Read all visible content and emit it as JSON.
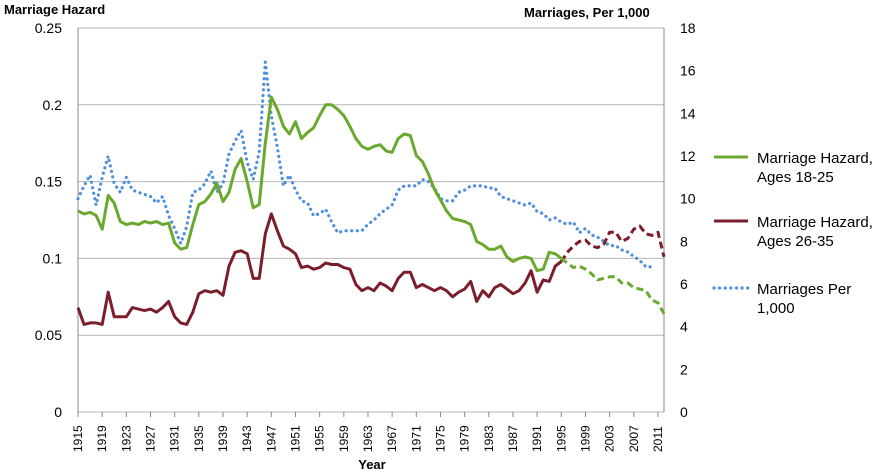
{
  "chart_data": {
    "type": "line",
    "left_axis_title": "Marriage Hazard",
    "right_axis_title": "Marriages, Per 1,000",
    "xlabel": "Year",
    "left_ylim": [
      0,
      0.25
    ],
    "right_ylim": [
      0,
      18
    ],
    "left_ticks": [
      "0",
      "0.05",
      "0.1",
      "0.15",
      "0.2",
      "0.25"
    ],
    "right_ticks": [
      "0",
      "2",
      "4",
      "6",
      "8",
      "10",
      "12",
      "14",
      "16",
      "18"
    ],
    "x_range": [
      1915,
      2012
    ],
    "x_ticks": [
      "1915",
      "1919",
      "1923",
      "1927",
      "1931",
      "1935",
      "1939",
      "1943",
      "1947",
      "1951",
      "1955",
      "1959",
      "1963",
      "1967",
      "1971",
      "1975",
      "1979",
      "1983",
      "1987",
      "1991",
      "1995",
      "1999",
      "2003",
      "2007",
      "2011"
    ],
    "grid": true,
    "legend_position": "right",
    "colors": {
      "green": "#6aa92e",
      "maroon": "#7b1e2c",
      "blue": "#4f8fdb",
      "grid": "#b5b5b5"
    },
    "series": [
      {
        "name": "Marriage Hazard, Ages 18-25",
        "axis": "left",
        "color": "#6aa92e",
        "style": "solid",
        "dashed_from": 1995,
        "x": [
          1915,
          1916,
          1917,
          1918,
          1919,
          1920,
          1921,
          1922,
          1923,
          1924,
          1925,
          1926,
          1927,
          1928,
          1929,
          1930,
          1931,
          1932,
          1933,
          1934,
          1935,
          1936,
          1937,
          1938,
          1939,
          1940,
          1941,
          1942,
          1943,
          1944,
          1945,
          1946,
          1947,
          1948,
          1949,
          1950,
          1951,
          1952,
          1953,
          1954,
          1955,
          1956,
          1957,
          1958,
          1959,
          1960,
          1961,
          1962,
          1963,
          1964,
          1965,
          1966,
          1967,
          1968,
          1969,
          1970,
          1971,
          1972,
          1973,
          1974,
          1975,
          1976,
          1977,
          1978,
          1979,
          1980,
          1981,
          1982,
          1983,
          1984,
          1985,
          1986,
          1987,
          1988,
          1989,
          1990,
          1991,
          1992,
          1993,
          1994,
          1995,
          1996,
          1997,
          1998,
          1999,
          2000,
          2001,
          2002,
          2003,
          2004,
          2005,
          2006,
          2007,
          2008,
          2009,
          2010,
          2011,
          2012
        ],
        "values": [
          0.131,
          0.129,
          0.13,
          0.128,
          0.119,
          0.141,
          0.136,
          0.124,
          0.122,
          0.123,
          0.122,
          0.124,
          0.123,
          0.124,
          0.122,
          0.123,
          0.11,
          0.106,
          0.107,
          0.122,
          0.135,
          0.137,
          0.142,
          0.149,
          0.137,
          0.143,
          0.158,
          0.165,
          0.15,
          0.133,
          0.135,
          0.175,
          0.205,
          0.197,
          0.186,
          0.181,
          0.189,
          0.178,
          0.182,
          0.185,
          0.193,
          0.2,
          0.2,
          0.197,
          0.193,
          0.186,
          0.178,
          0.173,
          0.171,
          0.173,
          0.174,
          0.17,
          0.169,
          0.178,
          0.181,
          0.18,
          0.167,
          0.163,
          0.155,
          0.145,
          0.138,
          0.131,
          0.126,
          0.125,
          0.124,
          0.122,
          0.111,
          0.109,
          0.106,
          0.106,
          0.108,
          0.101,
          0.098,
          0.1,
          0.101,
          0.1,
          0.092,
          0.093,
          0.104,
          0.103,
          0.1,
          0.097,
          0.094,
          0.095,
          0.093,
          0.09,
          0.086,
          0.087,
          0.088,
          0.088,
          0.084,
          0.084,
          0.081,
          0.08,
          0.079,
          0.073,
          0.071,
          0.064
        ]
      },
      {
        "name": "Marriage Hazard, Ages 26-35",
        "axis": "left",
        "color": "#7b1e2c",
        "style": "solid",
        "dashed_from": 1995,
        "x": [
          1915,
          1916,
          1917,
          1918,
          1919,
          1920,
          1921,
          1922,
          1923,
          1924,
          1925,
          1926,
          1927,
          1928,
          1929,
          1930,
          1931,
          1932,
          1933,
          1934,
          1935,
          1936,
          1937,
          1938,
          1939,
          1940,
          1941,
          1942,
          1943,
          1944,
          1945,
          1946,
          1947,
          1948,
          1949,
          1950,
          1951,
          1952,
          1953,
          1954,
          1955,
          1956,
          1957,
          1958,
          1959,
          1960,
          1961,
          1962,
          1963,
          1964,
          1965,
          1966,
          1967,
          1968,
          1969,
          1970,
          1971,
          1972,
          1973,
          1974,
          1975,
          1976,
          1977,
          1978,
          1979,
          1980,
          1981,
          1982,
          1983,
          1984,
          1985,
          1986,
          1987,
          1988,
          1989,
          1990,
          1991,
          1992,
          1993,
          1994,
          1995,
          1996,
          1997,
          1998,
          1999,
          2000,
          2001,
          2002,
          2003,
          2004,
          2005,
          2006,
          2007,
          2008,
          2009,
          2010,
          2011,
          2012
        ],
        "values": [
          0.068,
          0.057,
          0.058,
          0.058,
          0.057,
          0.078,
          0.062,
          0.062,
          0.062,
          0.068,
          0.067,
          0.066,
          0.067,
          0.065,
          0.068,
          0.072,
          0.062,
          0.058,
          0.057,
          0.065,
          0.077,
          0.079,
          0.078,
          0.079,
          0.076,
          0.095,
          0.104,
          0.105,
          0.103,
          0.087,
          0.087,
          0.116,
          0.129,
          0.118,
          0.108,
          0.106,
          0.103,
          0.094,
          0.095,
          0.093,
          0.094,
          0.097,
          0.096,
          0.096,
          0.094,
          0.093,
          0.083,
          0.079,
          0.081,
          0.079,
          0.084,
          0.082,
          0.079,
          0.087,
          0.091,
          0.091,
          0.081,
          0.083,
          0.081,
          0.079,
          0.081,
          0.079,
          0.075,
          0.078,
          0.08,
          0.085,
          0.072,
          0.079,
          0.075,
          0.081,
          0.083,
          0.08,
          0.077,
          0.079,
          0.084,
          0.092,
          0.078,
          0.086,
          0.085,
          0.095,
          0.098,
          0.104,
          0.108,
          0.111,
          0.112,
          0.108,
          0.107,
          0.109,
          0.117,
          0.117,
          0.111,
          0.113,
          0.119,
          0.121,
          0.116,
          0.115,
          0.117,
          0.101
        ]
      },
      {
        "name": "Marriages Per 1,000",
        "axis": "right",
        "color": "#4f8fdb",
        "style": "dotted",
        "x": [
          1915,
          1916,
          1917,
          1918,
          1919,
          1920,
          1921,
          1922,
          1923,
          1924,
          1925,
          1926,
          1927,
          1928,
          1929,
          1930,
          1931,
          1932,
          1933,
          1934,
          1935,
          1936,
          1937,
          1938,
          1939,
          1940,
          1941,
          1942,
          1943,
          1944,
          1945,
          1946,
          1947,
          1948,
          1949,
          1950,
          1951,
          1952,
          1953,
          1954,
          1955,
          1956,
          1957,
          1958,
          1959,
          1960,
          1961,
          1962,
          1963,
          1964,
          1965,
          1966,
          1967,
          1968,
          1969,
          1970,
          1971,
          1972,
          1973,
          1974,
          1975,
          1976,
          1977,
          1978,
          1979,
          1980,
          1981,
          1982,
          1983,
          1984,
          1985,
          1986,
          1987,
          1988,
          1989,
          1990,
          1991,
          1992,
          1993,
          1994,
          1995,
          1996,
          1997,
          1998,
          1999,
          2000,
          2001,
          2002,
          2003,
          2004,
          2005,
          2006,
          2007,
          2008,
          2009,
          2010
        ],
        "values": [
          10.0,
          10.6,
          11.1,
          9.7,
          11.0,
          12.0,
          10.7,
          10.3,
          11.0,
          10.4,
          10.3,
          10.2,
          10.1,
          9.8,
          10.1,
          9.2,
          8.6,
          7.9,
          8.7,
          10.3,
          10.4,
          10.7,
          11.3,
          10.3,
          10.7,
          12.1,
          12.7,
          13.2,
          11.7,
          10.9,
          12.2,
          16.4,
          13.9,
          12.4,
          10.6,
          11.1,
          10.4,
          9.9,
          9.8,
          9.2,
          9.3,
          9.5,
          8.9,
          8.4,
          8.5,
          8.5,
          8.5,
          8.5,
          8.8,
          9.0,
          9.3,
          9.5,
          9.7,
          10.4,
          10.6,
          10.6,
          10.6,
          10.9,
          10.8,
          10.5,
          10.0,
          9.9,
          9.9,
          10.3,
          10.4,
          10.6,
          10.6,
          10.6,
          10.5,
          10.5,
          10.1,
          10.0,
          9.9,
          9.8,
          9.7,
          9.8,
          9.4,
          9.3,
          9.0,
          9.1,
          8.9,
          8.8,
          8.9,
          8.4,
          8.6,
          8.3,
          8.2,
          8.0,
          7.8,
          7.8,
          7.6,
          7.5,
          7.3,
          7.1,
          6.8,
          6.8
        ]
      }
    ]
  }
}
